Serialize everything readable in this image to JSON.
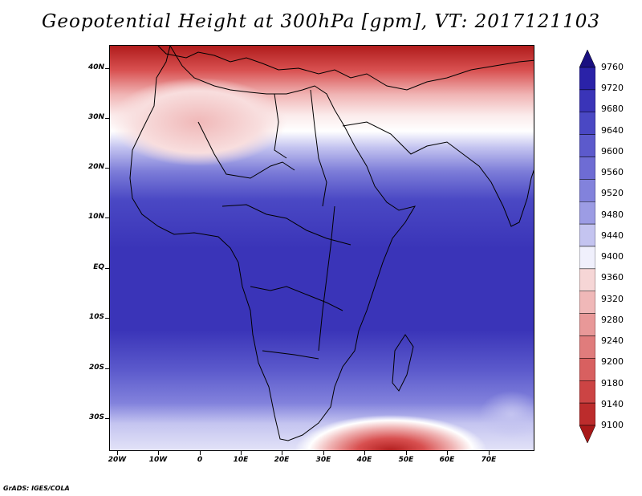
{
  "title": "Geopotential Height at 300hPa [gpm], VT: 2017121103",
  "credit": "GrADS: IGES/COLA",
  "lat_labels": [
    "40N",
    "30N",
    "20N",
    "10N",
    "EQ",
    "10S",
    "20S",
    "30S"
  ],
  "lon_labels": [
    "20W",
    "10W",
    "0",
    "10E",
    "20E",
    "30E",
    "40E",
    "50E",
    "60E",
    "70E"
  ],
  "colorbar": {
    "levels": [
      "9760",
      "9720",
      "9680",
      "9640",
      "9600",
      "9560",
      "9520",
      "9480",
      "9440",
      "9400",
      "9360",
      "9320",
      "9280",
      "9240",
      "9200",
      "9180",
      "9140",
      "9100"
    ],
    "colors": [
      "#1a1080",
      "#2a22a8",
      "#3a34b8",
      "#4a48c4",
      "#5c5acc",
      "#6e6cd4",
      "#8282dc",
      "#9c9ce4",
      "#c4c4f0",
      "#f0f0fc",
      "#f6d6d6",
      "#f0b8b8",
      "#e89898",
      "#e07c7c",
      "#d86060",
      "#cc4444",
      "#bc2c2c",
      "#a81818"
    ]
  }
}
